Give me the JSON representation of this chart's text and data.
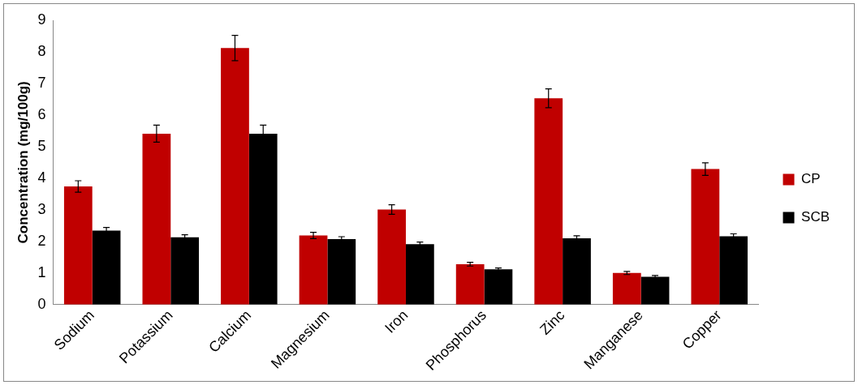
{
  "chart_data": {
    "type": "bar",
    "ylabel": "Concentration (mg/100g)",
    "categories": [
      "Sodium",
      "Potassium",
      "Calcium",
      "Magnesium",
      "Iron",
      "Phosphorus",
      "Zinc",
      "Manganese",
      "Copper"
    ],
    "series": [
      {
        "name": "CP",
        "color": "#c00000",
        "values": [
          3.74,
          5.41,
          8.12,
          2.19,
          3.01,
          1.28,
          6.53,
          1.0,
          4.29
        ],
        "errors": [
          0.18,
          0.27,
          0.4,
          0.1,
          0.15,
          0.06,
          0.3,
          0.05,
          0.2
        ]
      },
      {
        "name": "SCB",
        "color": "#000000",
        "values": [
          2.34,
          2.13,
          5.41,
          2.07,
          1.91,
          1.12,
          2.1,
          0.88,
          2.16
        ],
        "errors": [
          0.1,
          0.08,
          0.27,
          0.08,
          0.07,
          0.04,
          0.08,
          0.04,
          0.08
        ]
      }
    ],
    "ylim": [
      0,
      9
    ],
    "yticks": [
      0,
      1,
      2,
      3,
      4,
      5,
      6,
      7,
      8,
      9
    ],
    "grid": false,
    "legend": "right"
  }
}
